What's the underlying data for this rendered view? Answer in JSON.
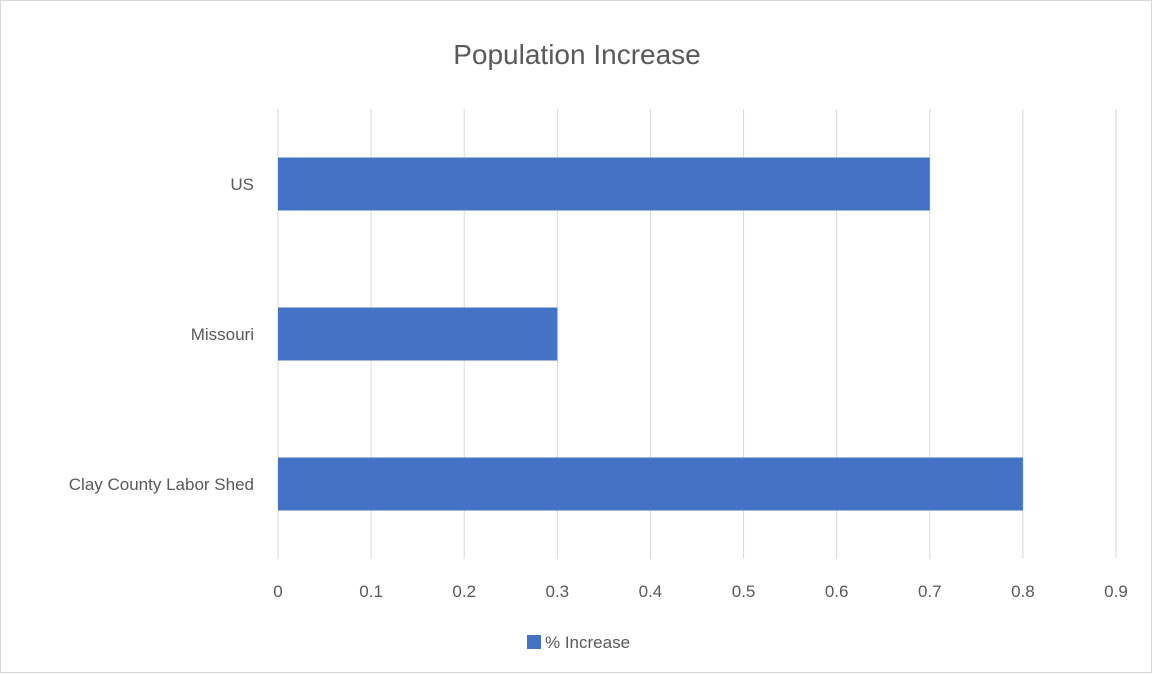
{
  "chart_data": {
    "type": "bar",
    "orientation": "horizontal",
    "title": "Population Increase",
    "categories": [
      "US",
      "Missouri",
      "Clay County Labor Shed"
    ],
    "series": [
      {
        "name": "% Increase",
        "values": [
          0.7,
          0.3,
          0.8
        ],
        "color": "#4472c4"
      }
    ],
    "xlim": [
      0,
      0.9
    ],
    "x_ticks": [
      "0",
      "0.1",
      "0.2",
      "0.3",
      "0.4",
      "0.5",
      "0.6",
      "0.7",
      "0.8",
      "0.9"
    ],
    "grid": true,
    "legend_position": "bottom"
  }
}
